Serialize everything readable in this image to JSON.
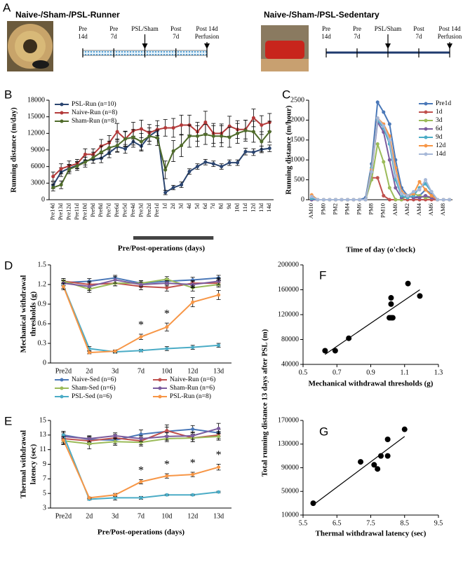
{
  "schematic": {
    "panel": "A",
    "protocols": [
      {
        "title": "Naive-/Sham-/PSL-Runner",
        "timeline": [
          [
            "Pre",
            "14d"
          ],
          [
            "Pre",
            "7d"
          ],
          [
            "PSL/Sham"
          ],
          [
            "Post",
            "7d"
          ],
          [
            "Post 14d",
            "Perfusion"
          ]
        ]
      },
      {
        "title": "Naive-/Sham-/PSL-Sedentary",
        "timeline": [
          [
            "Pre",
            "14d"
          ],
          [
            "Pre",
            "7d"
          ],
          [
            "PSL/Sham"
          ],
          [
            "Post",
            "7d"
          ],
          [
            "Post 14d",
            "Perfusion"
          ]
        ]
      }
    ]
  },
  "chart_data": [
    {
      "type": "line",
      "panel": "B",
      "ylabel": "Running distance (m/day)",
      "xlabel": "Pre/Post-operations (days)",
      "categories": [
        "Pre14d",
        "Pre13d",
        "Pre12d",
        "Pre11d",
        "Pre10d",
        "Pre9d",
        "Pre8d",
        "Pre7d",
        "Pre6d",
        "Pre5d",
        "Pre4d",
        "Pre3d",
        "Pre2d",
        "Pre1d",
        "1d",
        "2d",
        "3d",
        "4d",
        "5d",
        "6d",
        "7d",
        "8d",
        "9d",
        "10d",
        "11d",
        "12d",
        "13d",
        "14d"
      ],
      "ylim": [
        0,
        18000
      ],
      "yticks": [
        0,
        3000,
        6000,
        9000,
        12000,
        15000,
        18000
      ],
      "legend": "top-left",
      "series": [
        {
          "name": "PSL-Run (n=10)",
          "color": "#2b4570",
          "values": [
            2600,
            5000,
            5700,
            6200,
            7000,
            7300,
            7500,
            8500,
            9600,
            9200,
            10500,
            9700,
            11500,
            12500,
            1300,
            2200,
            2700,
            5100,
            6000,
            6800,
            6500,
            6000,
            6700,
            6700,
            8700,
            8600,
            9100,
            9300
          ],
          "errors": [
            600,
            800,
            700,
            600,
            700,
            700,
            800,
            900,
            900,
            800,
            1000,
            900,
            900,
            900,
            400,
            400,
            500,
            500,
            500,
            500,
            500,
            500,
            500,
            500,
            600,
            600,
            600,
            600
          ]
        },
        {
          "name": "Naive-Run (n=8)",
          "color": "#b33a3a",
          "values": [
            4200,
            5600,
            6100,
            6500,
            8200,
            8200,
            9700,
            10300,
            12300,
            11000,
            12500,
            12800,
            12100,
            12700,
            13000,
            13000,
            13500,
            13500,
            12300,
            14000,
            12000,
            12000,
            13300,
            12700,
            12700,
            14800,
            13500,
            14000
          ],
          "errors": [
            800,
            900,
            900,
            800,
            1000,
            1000,
            1200,
            1300,
            1500,
            1400,
            1500,
            1600,
            1500,
            1600,
            1500,
            1700,
            1800,
            1800,
            1700,
            2000,
            1800,
            1700,
            1800,
            1600,
            1700,
            1600,
            1700,
            1600
          ]
        },
        {
          "name": "Sham-Run (n=8)",
          "color": "#4f6b2a",
          "values": [
            2200,
            2700,
            5500,
            6100,
            6800,
            7600,
            8600,
            9400,
            9800,
            11000,
            11300,
            10500,
            11500,
            11200,
            5400,
            8800,
            9800,
            11500,
            11500,
            11800,
            11500,
            11500,
            11300,
            12000,
            12500,
            12300,
            10500,
            12300
          ],
          "errors": [
            600,
            700,
            800,
            800,
            900,
            1000,
            1100,
            1200,
            1200,
            1300,
            1400,
            1500,
            1500,
            1400,
            1600,
            1900,
            2000,
            2000,
            1900,
            1800,
            1900,
            1900,
            1800,
            1800,
            1900,
            1900,
            1800,
            1900
          ]
        }
      ]
    },
    {
      "type": "line",
      "panel": "C",
      "ylabel": "Running distance (m/hour)",
      "xlabel": "Time of day  (o'clock)",
      "categories": [
        "AM10",
        null,
        "PM0",
        null,
        "PM2",
        null,
        "PM4",
        null,
        "PM6",
        null,
        "PM8",
        null,
        "PM10",
        null,
        "AM0",
        null,
        "AM2",
        null,
        "AM4",
        null,
        "AM6",
        null,
        "AM8",
        null
      ],
      "ylim": [
        0,
        2500
      ],
      "yticks": [
        0,
        500,
        1000,
        1500,
        2000,
        2500
      ],
      "legend": "top-right",
      "series": [
        {
          "name": "Pre1d",
          "color": "#4a78b8",
          "values": [
            50,
            0,
            0,
            0,
            0,
            0,
            0,
            0,
            0,
            50,
            900,
            2450,
            2200,
            1900,
            1000,
            300,
            100,
            50,
            100,
            250,
            150,
            0,
            0,
            0
          ]
        },
        {
          "name": "1d",
          "color": "#c0504d",
          "values": [
            0,
            0,
            0,
            0,
            0,
            0,
            0,
            0,
            0,
            0,
            550,
            550,
            100,
            0,
            0,
            0,
            0,
            0,
            0,
            0,
            0,
            0,
            0,
            0
          ]
        },
        {
          "name": "3d",
          "color": "#9bbb59",
          "values": [
            0,
            0,
            0,
            0,
            0,
            0,
            0,
            0,
            0,
            0,
            500,
            1400,
            950,
            300,
            0,
            0,
            100,
            150,
            100,
            50,
            50,
            0,
            0,
            0
          ]
        },
        {
          "name": "6d",
          "color": "#7b5b9e",
          "values": [
            0,
            0,
            0,
            0,
            0,
            0,
            0,
            0,
            0,
            0,
            700,
            1950,
            1700,
            1000,
            300,
            50,
            100,
            50,
            50,
            100,
            50,
            0,
            0,
            0
          ]
        },
        {
          "name": "9d",
          "color": "#4bacc6",
          "values": [
            30,
            0,
            0,
            0,
            0,
            0,
            0,
            0,
            0,
            0,
            800,
            2000,
            1800,
            1400,
            500,
            100,
            50,
            100,
            300,
            400,
            200,
            0,
            0,
            0
          ]
        },
        {
          "name": "12d",
          "color": "#f79646",
          "values": [
            120,
            0,
            0,
            0,
            0,
            0,
            0,
            0,
            0,
            0,
            750,
            2050,
            1900,
            1600,
            800,
            200,
            100,
            150,
            450,
            250,
            100,
            0,
            0,
            0
          ]
        },
        {
          "name": "14d",
          "color": "#a6b8d8",
          "values": [
            80,
            0,
            0,
            0,
            0,
            0,
            0,
            0,
            0,
            0,
            700,
            2050,
            1850,
            1500,
            600,
            150,
            100,
            200,
            250,
            500,
            200,
            0,
            0,
            0
          ]
        }
      ]
    },
    {
      "type": "line",
      "panel": "D",
      "ylabel": [
        "Mechanical withdrawal",
        "thresholds (g)"
      ],
      "categories": [
        "Pre2d",
        "2d",
        "3d",
        "7d",
        "10d",
        "12d",
        "13d"
      ],
      "ylim": [
        0,
        1.5
      ],
      "yticks": [
        0,
        0.3,
        0.6,
        0.9,
        1.2,
        1.5
      ],
      "legend": "bottom",
      "annotations": [
        {
          "category": "7d",
          "text": "*"
        },
        {
          "category": "10d",
          "text": "*"
        },
        {
          "category": "12d",
          "text": "*"
        },
        {
          "category": "13d",
          "text": "*"
        }
      ],
      "series": [
        {
          "name": "Naive-Sed (n=6)",
          "color": "#4a78b8",
          "values": [
            1.23,
            1.25,
            1.3,
            1.22,
            1.25,
            1.27,
            1.3
          ],
          "errors": [
            0.04,
            0.04,
            0.04,
            0.04,
            0.04,
            0.04,
            0.04
          ]
        },
        {
          "name": "Naive-Run (n=6)",
          "color": "#c0504d",
          "values": [
            1.25,
            1.2,
            1.22,
            1.17,
            1.15,
            1.22,
            1.22
          ],
          "errors": [
            0.04,
            0.05,
            0.04,
            0.05,
            0.05,
            0.04,
            0.04
          ]
        },
        {
          "name": "Sham-Sed (n=6)",
          "color": "#9bbb59",
          "values": [
            1.25,
            1.13,
            1.22,
            1.22,
            1.28,
            1.15,
            1.2
          ],
          "errors": [
            0.04,
            0.05,
            0.04,
            0.04,
            0.04,
            0.05,
            0.04
          ]
        },
        {
          "name": "Sham-Run (n=6)",
          "color": "#7b5b9e",
          "values": [
            1.22,
            1.17,
            1.27,
            1.2,
            1.22,
            1.2,
            1.25
          ],
          "errors": [
            0.04,
            0.06,
            0.05,
            0.04,
            0.04,
            0.05,
            0.05
          ]
        },
        {
          "name": "PSL-Sed (n=6)",
          "color": "#4bacc6",
          "values": [
            1.18,
            0.22,
            0.17,
            0.19,
            0.22,
            0.24,
            0.27
          ],
          "errors": [
            0.04,
            0.03,
            0.02,
            0.02,
            0.03,
            0.03,
            0.03
          ]
        },
        {
          "name": "PSL-Run (n=8)",
          "color": "#f79646",
          "values": [
            1.17,
            0.16,
            0.18,
            0.4,
            0.55,
            0.93,
            1.04
          ],
          "errors": [
            0.05,
            0.02,
            0.02,
            0.04,
            0.06,
            0.07,
            0.07
          ]
        }
      ]
    },
    {
      "type": "line",
      "panel": "E",
      "ylabel": [
        "Thermal withdrawal",
        "latency (sec)"
      ],
      "xlabel": "Pre/Post-operations (days)",
      "categories": [
        "Pre2d",
        "2d",
        "3d",
        "7d",
        "10d",
        "12d",
        "13d"
      ],
      "ylim": [
        3,
        15
      ],
      "yticks": [
        3,
        5,
        7,
        9,
        11,
        13,
        15
      ],
      "annotations": [
        {
          "category": "7d",
          "text": "*"
        },
        {
          "category": "10d",
          "text": "*"
        },
        {
          "category": "12d",
          "text": "*"
        },
        {
          "category": "13d",
          "text": "*"
        }
      ],
      "series": [
        {
          "color": "#4a78b8",
          "values": [
            13.0,
            12.4,
            12.3,
            13.1,
            13.5,
            13.8,
            13.3
          ],
          "errors": [
            0.5,
            0.4,
            0.5,
            0.6,
            0.6,
            0.5,
            0.5
          ]
        },
        {
          "color": "#c0504d",
          "values": [
            12.5,
            12.2,
            12.6,
            12.2,
            13.6,
            12.6,
            13.0
          ],
          "errors": [
            0.5,
            0.5,
            0.5,
            0.5,
            0.8,
            0.5,
            0.5
          ]
        },
        {
          "color": "#9bbb59",
          "values": [
            12.2,
            11.8,
            12.1,
            12.0,
            12.5,
            12.6,
            12.8
          ],
          "errors": [
            0.5,
            0.7,
            0.5,
            0.5,
            0.4,
            0.5,
            0.5
          ]
        },
        {
          "color": "#7b5b9e",
          "values": [
            12.8,
            12.5,
            12.9,
            12.5,
            12.8,
            12.9,
            13.9
          ],
          "errors": [
            0.5,
            0.4,
            0.4,
            0.4,
            0.5,
            0.5,
            0.7
          ]
        },
        {
          "color": "#4bacc6",
          "values": [
            13.0,
            4.2,
            4.4,
            4.4,
            4.8,
            4.8,
            5.2
          ],
          "errors": [
            0.5,
            0.1,
            0.3,
            0.2,
            0.1,
            0.1,
            0.1
          ]
        },
        {
          "color": "#f79646",
          "values": [
            12.3,
            4.4,
            4.8,
            6.6,
            7.4,
            7.6,
            8.6
          ],
          "errors": [
            0.5,
            0.1,
            0.2,
            0.3,
            0.3,
            0.3,
            0.4
          ]
        }
      ]
    },
    {
      "type": "scatter",
      "panel": "F",
      "ylabel": "Total running distance 13 days after PSL (m)",
      "xlabel": "Mechanical withdrawal thresholds (g)",
      "xlim": [
        0.5,
        1.3
      ],
      "xticks": [
        0.5,
        0.7,
        0.9,
        1.1,
        1.3
      ],
      "ylim": [
        40000,
        200000
      ],
      "yticks": [
        40000,
        80000,
        120000,
        160000,
        200000
      ],
      "trendline": true,
      "color": "#000000",
      "x": [
        0.63,
        0.69,
        0.77,
        1.01,
        1.02,
        1.03,
        1.02,
        1.02,
        1.12,
        1.19
      ],
      "values": [
        62000,
        62000,
        82000,
        115000,
        115000,
        115000,
        137000,
        147000,
        170000,
        150000
      ]
    },
    {
      "type": "scatter",
      "panel": "G",
      "xlabel": "Thermal withdrawal latency (sec)",
      "xlim": [
        5.5,
        9.5
      ],
      "xticks": [
        5.5,
        6.5,
        7.5,
        8.5,
        9.5
      ],
      "ylim": [
        10000,
        170000
      ],
      "yticks": [
        10000,
        50000,
        90000,
        130000,
        170000
      ],
      "trendline": true,
      "color": "#000000",
      "x": [
        5.8,
        7.2,
        7.6,
        7.7,
        7.8,
        8.0,
        8.0,
        8.5
      ],
      "values": [
        30000,
        100000,
        95000,
        88000,
        110000,
        110000,
        138000,
        155000
      ]
    }
  ]
}
